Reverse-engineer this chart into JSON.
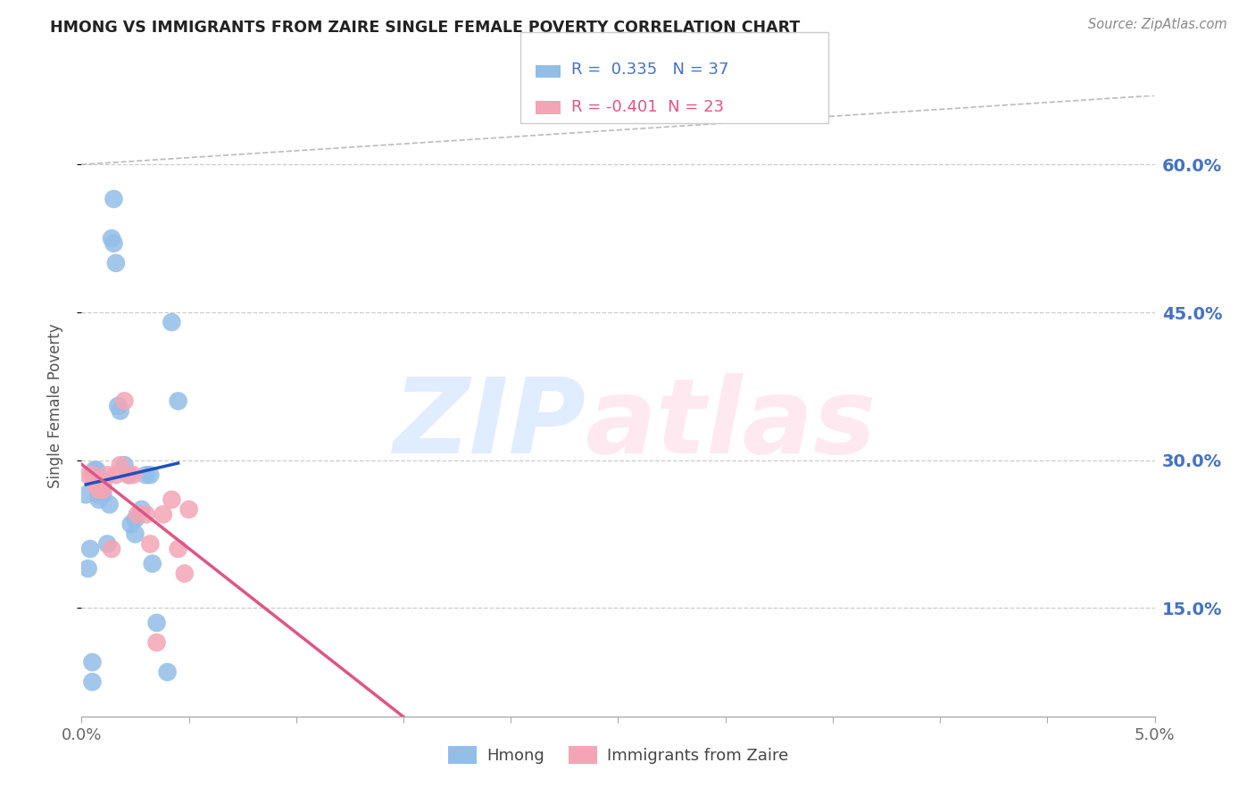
{
  "title": "HMONG VS IMMIGRANTS FROM ZAIRE SINGLE FEMALE POVERTY CORRELATION CHART",
  "source": "Source: ZipAtlas.com",
  "ylabel": "Single Female Poverty",
  "yticks": [
    0.15,
    0.3,
    0.45,
    0.6
  ],
  "ytick_labels": [
    "15.0%",
    "30.0%",
    "45.0%",
    "60.0%"
  ],
  "xlim": [
    0.0,
    0.05
  ],
  "ylim": [
    0.04,
    0.67
  ],
  "hmong_R": 0.335,
  "hmong_N": 37,
  "zaire_R": -0.401,
  "zaire_N": 23,
  "hmong_color": "#92BEE8",
  "zaire_color": "#F4A5B5",
  "hmong_line_color": "#2050C0",
  "zaire_line_color": "#E05585",
  "bg_color": "#ffffff",
  "grid_color": "#CCCCCC",
  "right_tick_color": "#4472C4",
  "legend_label_hmong": "Hmong",
  "legend_label_zaire": "Immigrants from Zaire",
  "hmong_x": [
    0.0002,
    0.0003,
    0.0004,
    0.0005,
    0.0005,
    0.0006,
    0.0006,
    0.0007,
    0.0007,
    0.0008,
    0.0008,
    0.0008,
    0.0009,
    0.001,
    0.001,
    0.001,
    0.0012,
    0.0013,
    0.0014,
    0.0015,
    0.0015,
    0.0016,
    0.0017,
    0.0018,
    0.002,
    0.0022,
    0.0023,
    0.0025,
    0.0025,
    0.0028,
    0.003,
    0.0032,
    0.0033,
    0.0035,
    0.004,
    0.0042,
    0.0045
  ],
  "hmong_y": [
    0.265,
    0.19,
    0.21,
    0.095,
    0.075,
    0.29,
    0.285,
    0.29,
    0.28,
    0.275,
    0.265,
    0.26,
    0.265,
    0.28,
    0.275,
    0.265,
    0.215,
    0.255,
    0.525,
    0.565,
    0.52,
    0.5,
    0.355,
    0.35,
    0.295,
    0.285,
    0.235,
    0.24,
    0.225,
    0.25,
    0.285,
    0.285,
    0.195,
    0.135,
    0.085,
    0.44,
    0.36
  ],
  "zaire_x": [
    0.0003,
    0.0005,
    0.0006,
    0.0007,
    0.0008,
    0.0009,
    0.001,
    0.0012,
    0.0014,
    0.0016,
    0.0018,
    0.002,
    0.0022,
    0.0024,
    0.0026,
    0.003,
    0.0032,
    0.0035,
    0.0038,
    0.0042,
    0.0045,
    0.0048,
    0.005
  ],
  "zaire_y": [
    0.285,
    0.285,
    0.28,
    0.275,
    0.27,
    0.275,
    0.27,
    0.285,
    0.21,
    0.285,
    0.295,
    0.36,
    0.285,
    0.285,
    0.245,
    0.245,
    0.215,
    0.115,
    0.245,
    0.26,
    0.21,
    0.185,
    0.25
  ],
  "zaire_line_xrange": [
    0.0,
    0.05
  ],
  "diag_color": "#BBBBBB"
}
